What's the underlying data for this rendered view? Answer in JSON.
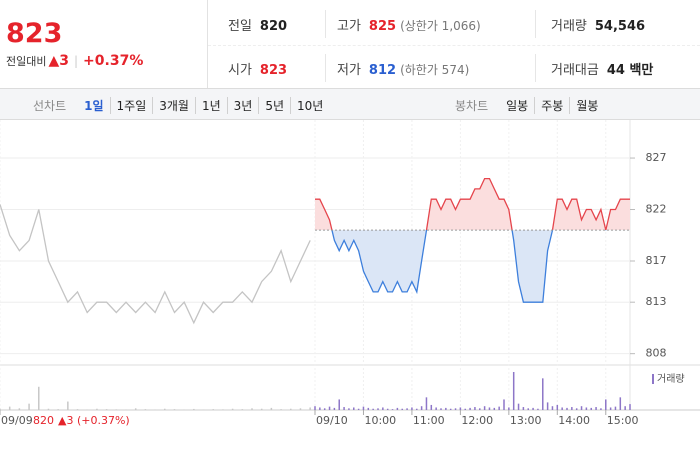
{
  "header": {
    "price": "823",
    "change_label": "전일대비",
    "change": "▲3",
    "change_pct": "+0.37%",
    "stats": [
      {
        "label": "전일",
        "value": "820",
        "color": "#222222"
      },
      {
        "label": "고가",
        "value": "825",
        "color": "#e5232b",
        "note": "(상한가 1,066)"
      },
      {
        "label": "거래량",
        "value": "54,546",
        "color": "#222222"
      },
      {
        "label": "시가",
        "value": "823",
        "color": "#e5232b"
      },
      {
        "label": "저가",
        "value": "812",
        "color": "#2a5fd0",
        "note": "(하한가 574)"
      },
      {
        "label": "거래대금",
        "value": "44 백만",
        "color": "#222222"
      }
    ]
  },
  "toolbar": {
    "line_chart": {
      "label": "선차트",
      "options": [
        "1일",
        "1주일",
        "3개월",
        "1년",
        "3년",
        "5년",
        "10년"
      ],
      "selected": 0
    },
    "candle_chart": {
      "label": "봉차트",
      "options": [
        "일봉",
        "주봉",
        "월봉"
      ]
    }
  },
  "chart_data": {
    "type": "line",
    "prev_close": 820,
    "series": [
      {
        "color": "#c4c4c4",
        "x": [
          -6.5,
          -6.3,
          -6.1,
          -5.9,
          -5.7,
          -5.5,
          -5.3,
          -5.1,
          -4.9,
          -4.7,
          -4.5,
          -4.3,
          -4.1,
          -3.9,
          -3.7,
          -3.5,
          -3.3,
          -3.1,
          -2.9,
          -2.7,
          -2.5,
          -2.3,
          -2.1,
          -1.9,
          -1.7,
          -1.5,
          -1.3,
          -1.1,
          -0.9,
          -0.7,
          -0.5,
          -0.3,
          -0.1
        ],
        "values": [
          822.5,
          819.5,
          818,
          819,
          822,
          817,
          815,
          813,
          814,
          812,
          813,
          813,
          812,
          813,
          812,
          813,
          812,
          814,
          812,
          813,
          811,
          813,
          812,
          813,
          813,
          814,
          813,
          815,
          816,
          818,
          815,
          817,
          819
        ]
      },
      {
        "color": "#e5454c",
        "color_below": "#3d7fdc",
        "fill": "#fbdede",
        "fill_below": "#dbe6f6",
        "x": [
          0,
          0.1,
          0.2,
          0.3,
          0.4,
          0.5,
          0.6,
          0.7,
          0.8,
          0.9,
          1,
          1.1,
          1.2,
          1.3,
          1.4,
          1.5,
          1.6,
          1.7,
          1.8,
          1.9,
          2,
          2.1,
          2.2,
          2.3,
          2.4,
          2.5,
          2.6,
          2.7,
          2.8,
          2.9,
          3,
          3.1,
          3.2,
          3.3,
          3.4,
          3.5,
          3.6,
          3.7,
          3.8,
          3.9,
          4,
          4.1,
          4.2,
          4.3,
          4.4,
          4.5,
          4.6,
          4.7,
          4.8,
          4.9,
          5,
          5.1,
          5.2,
          5.3,
          5.4,
          5.5,
          5.6,
          5.7,
          5.8,
          5.9,
          6,
          6.1,
          6.2,
          6.3,
          6.4,
          6.5
        ],
        "values": [
          823,
          823,
          822,
          821,
          819,
          818,
          819,
          818,
          819,
          818,
          816,
          815,
          814,
          814,
          815,
          814,
          814,
          815,
          814,
          814,
          815,
          814,
          817,
          820,
          823,
          823,
          822,
          823,
          823,
          822,
          823,
          823,
          823,
          824,
          824,
          825,
          825,
          824,
          823,
          823,
          822,
          819,
          815,
          813,
          813,
          813,
          813,
          813,
          818,
          820,
          823,
          823,
          822,
          823,
          823,
          821,
          822,
          822,
          821,
          822,
          820,
          822,
          822,
          823,
          823,
          823
        ]
      }
    ],
    "xlim": [
      -6.5,
      6.5
    ],
    "xticks": [
      {
        "value": -6.5,
        "label": "09/09"
      },
      {
        "value": 0,
        "label": "09/10"
      },
      {
        "value": 1,
        "label": "10:00"
      },
      {
        "value": 2,
        "label": "11:00"
      },
      {
        "value": 3,
        "label": "12:00"
      },
      {
        "value": 4,
        "label": "13:00"
      },
      {
        "value": 5,
        "label": "14:00"
      },
      {
        "value": 6,
        "label": "15:00"
      }
    ],
    "ylim": [
      806.9,
      830.5
    ],
    "yticks": [
      808,
      813,
      817,
      822,
      827
    ],
    "grid": true,
    "info": [
      "820",
      "▲3 (+0.37%)"
    ],
    "volume": {
      "name": "거래량",
      "color": "#8d76c8",
      "ylim": [
        0,
        9000
      ],
      "series": [
        {
          "color": "#c8c8c8",
          "values": [
            300,
            800,
            400,
            1500,
            5500,
            300,
            200,
            2000,
            200,
            100,
            300,
            200,
            150,
            100,
            400,
            200,
            100,
            300,
            200,
            100,
            250,
            100,
            200,
            150,
            300,
            200,
            400,
            300,
            500,
            200,
            300,
            400,
            600
          ]
        },
        {
          "color": "#8d76c8",
          "values": [
            900,
            600,
            400,
            800,
            500,
            2500,
            700,
            400,
            600,
            300,
            800,
            500,
            300,
            400,
            600,
            300,
            200,
            500,
            300,
            400,
            600,
            300,
            900,
            3000,
            1200,
            600,
            400,
            500,
            300,
            400,
            600,
            300,
            500,
            700,
            400,
            900,
            600,
            500,
            800,
            2500,
            600,
            9000,
            1500,
            700,
            400,
            500,
            300,
            7500,
            1800,
            900,
            1200,
            600,
            500,
            700,
            400,
            900,
            600,
            500,
            700,
            400,
            2500,
            600,
            800,
            3000,
            900,
            1400
          ]
        }
      ]
    }
  }
}
